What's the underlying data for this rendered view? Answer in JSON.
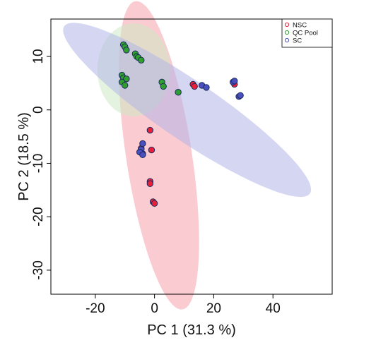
{
  "chart_data": {
    "type": "scatter",
    "xlabel": "PC 1 (31.3 %)",
    "ylabel": "PC 2 (18.5 %)",
    "xlim": [
      -35,
      60
    ],
    "ylim": [
      -34.5,
      17
    ],
    "xticks": [
      -20,
      0,
      20,
      40
    ],
    "yticks": [
      10,
      0,
      -10,
      -20,
      -30
    ],
    "tick_labels_x": [
      "-20",
      "0",
      "20",
      "40"
    ],
    "tick_labels_y": [
      "10",
      "0",
      "-10",
      "-20",
      "-30"
    ],
    "legend_position": "top-right",
    "grid": false,
    "series": [
      {
        "name": "NSC",
        "color": "#e8203a",
        "fill": "#f6a0ab",
        "ellipse": {
          "cx": 1.5,
          "cy": -8.5,
          "rx": 30.0,
          "ry": 10.8,
          "angle_deg": -73
        },
        "points": [
          [
            13,
            4.8
          ],
          [
            13.5,
            4.4
          ],
          [
            27,
            4.8
          ],
          [
            -1.5,
            -3.8
          ],
          [
            -1,
            -7.5
          ],
          [
            -4,
            -8.2
          ],
          [
            -4.5,
            -7.2
          ],
          [
            -1.5,
            -13.4
          ],
          [
            -1.5,
            -13.8
          ],
          [
            -0.5,
            -17.2
          ],
          [
            0,
            -17.5
          ]
        ]
      },
      {
        "name": "QC Pool",
        "color": "#2fa02f",
        "fill": "#cde9c4",
        "ellipse": {
          "cx": -7,
          "cy": 7.5,
          "rx": 12.3,
          "ry": 8.7,
          "angle_deg": 0
        },
        "points": [
          [
            -10.5,
            12.2
          ],
          [
            -10,
            11.8
          ],
          [
            -9.5,
            11.2
          ],
          [
            -6.5,
            10.5
          ],
          [
            -6,
            10.0
          ],
          [
            -5.5,
            9.8
          ],
          [
            -4.5,
            9.3
          ],
          [
            -11,
            6.5
          ],
          [
            -10.5,
            6.0
          ],
          [
            -9.5,
            5.8
          ],
          [
            -11,
            5.2
          ],
          [
            -10,
            4.6
          ],
          [
            2.5,
            5.2
          ],
          [
            3,
            4.4
          ],
          [
            8,
            3.3
          ]
        ]
      },
      {
        "name": "SC",
        "color": "#4a4fbf",
        "fill": "#b3b7e7",
        "ellipse": {
          "cx": 11,
          "cy": 0,
          "rx": 44.5,
          "ry": 6.2,
          "angle_deg": -20
        },
        "points": [
          [
            16,
            4.6
          ],
          [
            17.5,
            4.2
          ],
          [
            26.5,
            5.2
          ],
          [
            27,
            5.4
          ],
          [
            28.5,
            2.5
          ],
          [
            29,
            2.7
          ],
          [
            -4,
            -6.3
          ],
          [
            -4.5,
            -7.4
          ],
          [
            -5,
            -7.9
          ],
          [
            -4,
            -8.4
          ]
        ]
      }
    ]
  }
}
